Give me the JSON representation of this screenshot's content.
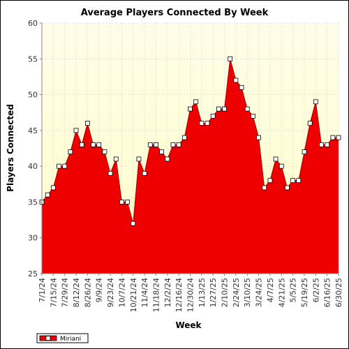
{
  "chart_data": {
    "type": "area",
    "title": "Average Players Connected By Week",
    "xlabel": "Week",
    "ylabel": "Players Connected",
    "ylim": [
      25,
      60
    ],
    "yticks": [
      25,
      30,
      35,
      40,
      45,
      50,
      55,
      60
    ],
    "grid": true,
    "legend_position": "bottom-left",
    "x": [
      "7/1/24",
      "7/8/24",
      "7/15/24",
      "7/22/24",
      "7/29/24",
      "8/5/24",
      "8/12/24",
      "8/19/24",
      "8/26/24",
      "9/2/24",
      "9/9/24",
      "9/16/24",
      "9/23/24",
      "9/30/24",
      "10/7/24",
      "10/14/24",
      "10/21/24",
      "10/28/24",
      "11/4/24",
      "11/11/24",
      "11/18/24",
      "11/25/24",
      "12/2/24",
      "12/9/24",
      "12/16/24",
      "12/23/24",
      "12/30/24",
      "1/6/25",
      "1/13/25",
      "1/20/25",
      "1/27/25",
      "2/3/25",
      "2/10/25",
      "2/17/25",
      "2/24/25",
      "3/3/25",
      "3/10/25",
      "3/17/25",
      "3/24/25",
      "3/31/25",
      "4/7/25",
      "4/14/25",
      "4/21/25",
      "4/28/25",
      "5/5/25",
      "5/12/25",
      "5/19/25",
      "5/26/25",
      "6/2/25",
      "6/9/25",
      "6/16/25",
      "6/23/25",
      "6/30/25"
    ],
    "x_tick_labels": [
      "7/1/24",
      "7/15/24",
      "7/29/24",
      "8/12/24",
      "8/26/24",
      "9/9/24",
      "9/23/24",
      "10/7/24",
      "10/21/24",
      "11/4/24",
      "11/18/24",
      "12/2/24",
      "12/16/24",
      "12/30/24",
      "1/13/25",
      "1/27/25",
      "2/10/25",
      "2/24/25",
      "3/10/25",
      "3/24/25",
      "4/7/25",
      "4/21/25",
      "5/5/25",
      "5/19/25",
      "6/2/25",
      "6/16/25",
      "6/30/25"
    ],
    "series": [
      {
        "name": "Miriani",
        "color": "#ee0000",
        "values": [
          35,
          36,
          37,
          40,
          40,
          42,
          45,
          43,
          46,
          43,
          43,
          42,
          39,
          41,
          35,
          35,
          32,
          41,
          39,
          43,
          43,
          42,
          41,
          43,
          43,
          44,
          48,
          49,
          46,
          46,
          47,
          48,
          48,
          55,
          52,
          51,
          48,
          47,
          44,
          37,
          38,
          41,
          40,
          37,
          38,
          38,
          42,
          46,
          49,
          43,
          43,
          44,
          44
        ]
      }
    ]
  },
  "colors": {
    "plot_background_top": "#fffde8",
    "plot_background_bottom": "#ffffc8",
    "area_fill": "#ee0000",
    "area_line": "#aa0000",
    "marker_fill": "#ffffff",
    "marker_stroke": "#000000"
  }
}
